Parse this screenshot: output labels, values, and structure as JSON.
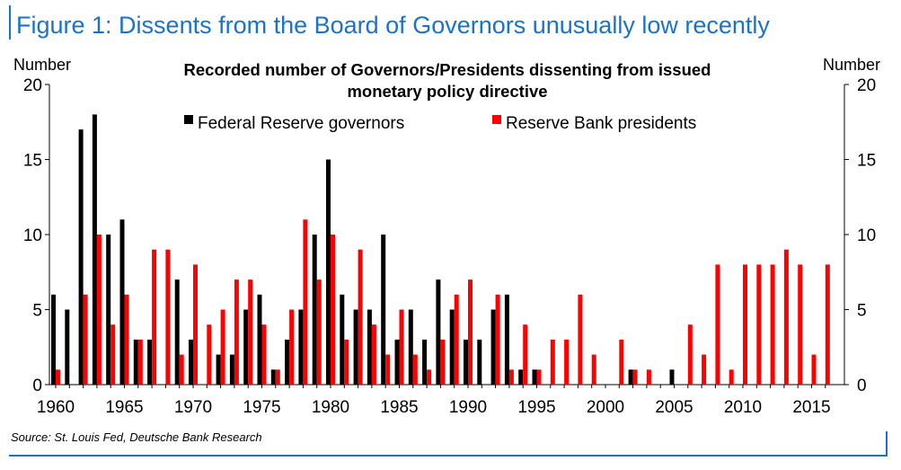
{
  "figure_title": "Figure 1: Dissents from the Board of Governors unusually low recently",
  "source": "Source: St. Louis Fed, Deutsche Bank Research",
  "colors": {
    "accent": "#1a73c8",
    "governors": "#000000",
    "presidents": "#ff0000"
  },
  "chart_data": {
    "type": "bar",
    "title_lines": [
      "Recorded number of Governors/Presidents dissenting from issued",
      "monetary policy directive"
    ],
    "ylabel_left": "Number",
    "ylabel_right": "Number",
    "ylim": [
      0,
      20
    ],
    "yticks": [
      "0",
      "5",
      "10",
      "15",
      "20"
    ],
    "xtick_labels": [
      "1960",
      "1965",
      "1970",
      "1975",
      "1980",
      "1985",
      "1990",
      "1995",
      "2000",
      "2005",
      "2010",
      "2015"
    ],
    "legend_position": "top",
    "categories": [
      1960,
      1961,
      1962,
      1963,
      1964,
      1965,
      1966,
      1967,
      1968,
      1969,
      1970,
      1971,
      1972,
      1973,
      1974,
      1975,
      1976,
      1977,
      1978,
      1979,
      1980,
      1981,
      1982,
      1983,
      1984,
      1985,
      1986,
      1987,
      1988,
      1989,
      1990,
      1991,
      1992,
      1993,
      1994,
      1995,
      1996,
      1997,
      1998,
      1999,
      2000,
      2001,
      2002,
      2003,
      2004,
      2005,
      2006,
      2007,
      2008,
      2009,
      2010,
      2011,
      2012,
      2013,
      2014,
      2015,
      2016
    ],
    "series": [
      {
        "name": "Federal Reserve governors",
        "values": [
          6,
          5,
          17,
          18,
          10,
          11,
          3,
          3,
          0,
          7,
          3,
          0,
          2,
          2,
          5,
          6,
          1,
          3,
          5,
          10,
          15,
          6,
          5,
          5,
          10,
          3,
          5,
          3,
          7,
          5,
          3,
          3,
          5,
          6,
          1,
          1,
          0,
          0,
          0,
          0,
          0,
          0,
          1,
          0,
          0,
          1,
          0,
          0,
          0,
          0,
          0,
          0,
          0,
          0,
          0,
          0,
          0
        ]
      },
      {
        "name": "Reserve Bank presidents",
        "values": [
          1,
          0,
          6,
          10,
          4,
          6,
          3,
          9,
          9,
          2,
          8,
          4,
          5,
          7,
          7,
          4,
          1,
          5,
          11,
          7,
          10,
          3,
          9,
          4,
          2,
          5,
          2,
          1,
          3,
          6,
          7,
          0,
          6,
          1,
          4,
          1,
          3,
          3,
          6,
          2,
          0,
          3,
          1,
          1,
          0,
          0,
          4,
          2,
          8,
          1,
          8,
          8,
          8,
          9,
          8,
          2,
          8
        ]
      }
    ]
  }
}
